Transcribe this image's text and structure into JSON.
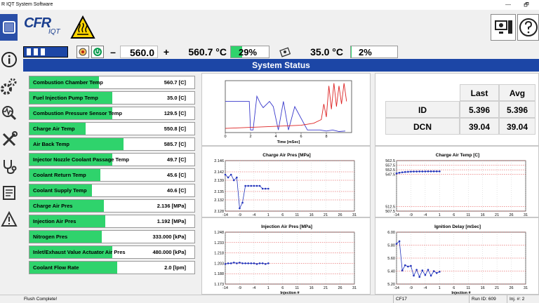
{
  "window": {
    "title": "R IQT System Software",
    "minimize": "—",
    "restore": "🗗"
  },
  "toolbar": {
    "logo_main": "CFR",
    "logo_sub": "IQT",
    "setpoint_value": "560.0",
    "minus_label": "–",
    "plus_label": "+",
    "temp_reading": "560.7 °C",
    "heater_pct": "29%",
    "heater_pct_fraction": 0.29,
    "cool_reading": "35.0 °C",
    "cool_pct": "2%",
    "cool_pct_fraction": 0.02
  },
  "status_header": "System Status",
  "readings": [
    {
      "label": "Combustion Chamber Temp",
      "value": "560.7 [C]",
      "fill": 0.42
    },
    {
      "label": "Fuel Injection Pump Temp",
      "value": "35.0 [C]",
      "fill": 0.5
    },
    {
      "label": "Combustion Pressure Sensor Temp",
      "value": "129.5 [C]",
      "fill": 0.5
    },
    {
      "label": "Charge Air Temp",
      "value": "550.8 [C]",
      "fill": 0.34
    },
    {
      "label": "Air Back Temp",
      "value": "585.7 [C]",
      "fill": 0.57
    },
    {
      "label": "Injector Nozzle Coolant Passage Temp",
      "value": "49.7 [C]",
      "fill": 0.5
    },
    {
      "label": "Coolant Return Temp",
      "value": "45.6 [C]",
      "fill": 0.43
    },
    {
      "label": "Coolant Supply Temp",
      "value": "40.6 [C]",
      "fill": 0.38
    },
    {
      "label": "Charge Air Pres",
      "value": "2.136 [MPa]",
      "fill": 0.45
    },
    {
      "label": "Injection Air Pres",
      "value": "1.192 [MPa]",
      "fill": 0.46
    },
    {
      "label": "Nitrogen Pres",
      "value": "333.000 [kPa]",
      "fill": 0.44
    },
    {
      "label": "Inlet/Exhaust Value Actuator Air Pres",
      "value": "480.000 [kPa]",
      "fill": 0.5
    },
    {
      "label": "Coolant Flow Rate",
      "value": "2.0 [lpm]",
      "fill": 0.53
    }
  ],
  "stats": {
    "col_last": "Last",
    "col_avg": "Avg",
    "rows": [
      {
        "label": "ID",
        "last": "5.396",
        "avg": "5.396"
      },
      {
        "label": "DCN",
        "last": "39.04",
        "avg": "39.04"
      }
    ]
  },
  "statusbar": {
    "message": "Flush Complete!",
    "fuel": "CF17",
    "run": "Run ID: 609",
    "inj": "Inj. #: 2"
  },
  "chart_data": [
    {
      "type": "line",
      "title": "",
      "xlabel": "Time [mSec]",
      "ylabel": "",
      "xlim": [
        0,
        10
      ],
      "x_ticks": [
        "0",
        "2",
        "4",
        "6",
        "8"
      ],
      "series": [
        {
          "color": "#3a3acc",
          "x": [
            0,
            1.9,
            2.0,
            2.2,
            2.5,
            2.8,
            3.0,
            3.5,
            3.8,
            4.2,
            4.6,
            5.0,
            5.5,
            6.5,
            7.5,
            8.0,
            8.5,
            9.0,
            9.5
          ],
          "y": [
            0.6,
            0.6,
            0.05,
            0.05,
            0.7,
            0.55,
            0.48,
            0.6,
            0.5,
            0.05,
            0.6,
            0.05,
            0.5,
            0.05,
            0.05,
            0.03,
            0.05,
            0.02,
            0.03
          ]
        },
        {
          "color": "#dd2222",
          "x": [
            0,
            2,
            4,
            6,
            7,
            7.6,
            7.8,
            8.0,
            8.2,
            8.4,
            8.6,
            8.8,
            9.0,
            9.2,
            9.4,
            9.6
          ],
          "y": [
            0.08,
            0.1,
            0.12,
            0.14,
            0.18,
            0.25,
            0.55,
            0.3,
            0.9,
            0.45,
            0.95,
            0.5,
            0.9,
            0.55,
            0.95,
            0.6
          ]
        }
      ]
    },
    {
      "type": "scatter",
      "title": "Charge Air Pres [MPa]",
      "xlabel": "",
      "y_ticks": [
        "2.146",
        "2.142",
        "2.139",
        "2.135",
        "2.132",
        "2.128"
      ],
      "ylim": [
        2.128,
        2.146
      ],
      "xlim": [
        -14,
        31
      ],
      "x_ticks": [
        "-14",
        "-9",
        "-4",
        "1",
        "6",
        "11",
        "16",
        "21",
        "26",
        "31"
      ],
      "series": [
        {
          "color": "#2233bb",
          "x": [
            -14,
            -13,
            -12,
            -11,
            -10,
            -9,
            -8,
            -7,
            -6,
            -5,
            -4,
            -3,
            -2,
            -1,
            0,
            1
          ],
          "y": [
            2.141,
            2.14,
            2.141,
            2.139,
            2.14,
            2.129,
            2.131,
            2.137,
            2.137,
            2.137,
            2.137,
            2.137,
            2.137,
            2.136,
            2.136,
            2.136
          ]
        }
      ]
    },
    {
      "type": "scatter",
      "title": "Charge Air Temp [C]",
      "xlabel": "",
      "y_ticks": [
        "562.5",
        "557.5",
        "552.5",
        "547.5",
        "512.5",
        "507.5"
      ],
      "ylim": [
        507.5,
        562.5
      ],
      "xlim": [
        -14,
        31
      ],
      "x_ticks": [
        "-14",
        "-9",
        "-4",
        "1",
        "6",
        "11",
        "16",
        "21",
        "26",
        "31"
      ],
      "series": [
        {
          "color": "#2233bb",
          "x": [
            -14,
            -13,
            -12,
            -11,
            -10,
            -9,
            -8,
            -7,
            -6,
            -5,
            -4,
            -3,
            -2,
            -1,
            0,
            1
          ],
          "y": [
            548.5,
            549.3,
            549.8,
            550.1,
            550.3,
            550.5,
            550.6,
            550.6,
            550.7,
            550.7,
            550.7,
            550.8,
            550.8,
            550.8,
            550.8,
            550.8
          ]
        }
      ]
    },
    {
      "type": "scatter",
      "title": "Injection Air Pres [MPa]",
      "xlabel": "Injection #",
      "y_ticks": [
        "1.248",
        "1.233",
        "1.218",
        "1.203",
        "1.188",
        "1.173"
      ],
      "ylim": [
        1.173,
        1.248
      ],
      "xlim": [
        -14,
        31
      ],
      "x_ticks": [
        "-14",
        "-9",
        "-4",
        "1",
        "6",
        "11",
        "16",
        "21",
        "26",
        "31"
      ],
      "series": [
        {
          "color": "#2233bb",
          "x": [
            -14,
            -13,
            -12,
            -11,
            -10,
            -9,
            -8,
            -7,
            -6,
            -5,
            -4,
            -3,
            -2,
            -1,
            0,
            1
          ],
          "y": [
            1.202,
            1.203,
            1.203,
            1.204,
            1.203,
            1.204,
            1.203,
            1.203,
            1.203,
            1.203,
            1.203,
            1.202,
            1.203,
            1.203,
            1.202,
            1.203
          ]
        }
      ]
    },
    {
      "type": "scatter",
      "title": "Ignition Delay [mSec]",
      "xlabel": "Injection #",
      "y_ticks": [
        "6.00",
        "5.80",
        "5.60",
        "5.40",
        "5.20"
      ],
      "ylim": [
        5.2,
        6.0
      ],
      "xlim": [
        -14,
        31
      ],
      "x_ticks": [
        "-14",
        "-9",
        "-4",
        "1",
        "6",
        "11",
        "16",
        "21",
        "26",
        "31"
      ],
      "series": [
        {
          "color": "#2233bb",
          "x": [
            -14,
            -13,
            -12,
            -11,
            -10,
            -9,
            -8,
            -7,
            -6,
            -5,
            -4,
            -3,
            -2,
            -1,
            0,
            1
          ],
          "y": [
            5.82,
            5.86,
            5.41,
            5.49,
            5.47,
            5.48,
            5.33,
            5.42,
            5.31,
            5.41,
            5.34,
            5.42,
            5.33,
            5.4,
            5.37,
            5.39
          ]
        }
      ]
    }
  ]
}
